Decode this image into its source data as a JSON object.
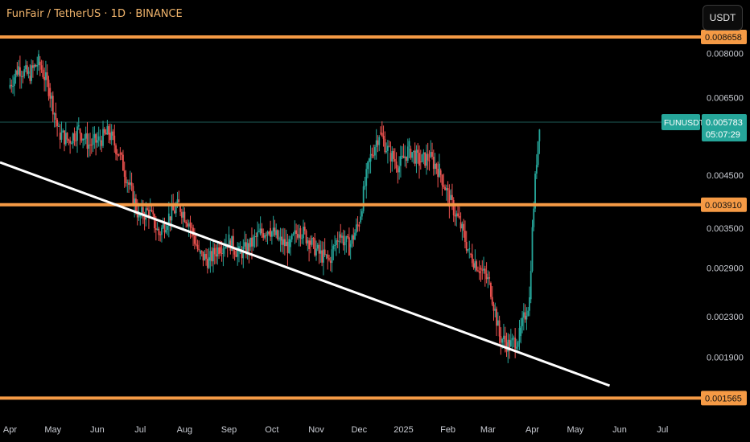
{
  "header": {
    "title": "FunFair / TetherUS · 1D · BINANCE",
    "unit_label": "USDT"
  },
  "colors": {
    "background": "#000000",
    "up": "#26a69a",
    "down": "#ef5350",
    "level": "#f59a45",
    "trendline": "#ffffff",
    "price_tag": "#26a69a"
  },
  "price_tag": {
    "symbol": "FUNUSDT",
    "price": "0.005783",
    "countdown": "05:07:29"
  },
  "chart_data": {
    "type": "candlestick",
    "title": "FunFair / TetherUS · 1D · BINANCE",
    "y_scale": "log",
    "y_ticks": [
      "0.008000",
      "0.006500",
      "0.004500",
      "0.003500",
      "0.002900",
      "0.002300",
      "0.001900"
    ],
    "y_range": [
      0.00148,
      0.0092
    ],
    "x_ticks": [
      "Apr",
      "May",
      "Jun",
      "Jul",
      "Aug",
      "Sep",
      "Oct",
      "Nov",
      "Dec",
      "2025",
      "Feb",
      "Mar",
      "Apr",
      "May",
      "Jun",
      "Jul"
    ],
    "x_range": [
      "2024-03-25",
      "2025-07-25"
    ],
    "horizontal_levels": [
      {
        "price": 0.008658,
        "label": "0.008658"
      },
      {
        "price": 0.00391,
        "label": "0.003910"
      },
      {
        "price": 0.001565,
        "label": "0.001565"
      }
    ],
    "trendline": {
      "start": [
        "2024-03-25",
        0.00478
      ],
      "end": [
        "2025-05-25",
        0.00166
      ]
    },
    "last_price": 0.005783,
    "candles": [
      [
        "2024-04-01",
        0.0068,
        0.0075
      ],
      [
        "2024-04-08",
        0.0075,
        0.0072
      ],
      [
        "2024-04-15",
        0.0072,
        0.0077
      ],
      [
        "2024-04-22",
        0.0077,
        0.0068
      ],
      [
        "2024-04-29",
        0.0068,
        0.0055
      ],
      [
        "2024-05-06",
        0.0055,
        0.0053
      ],
      [
        "2024-05-13",
        0.0053,
        0.0056
      ],
      [
        "2024-05-20",
        0.0056,
        0.0052
      ],
      [
        "2024-05-27",
        0.0052,
        0.0053
      ],
      [
        "2024-06-03",
        0.0053,
        0.0055
      ],
      [
        "2024-06-10",
        0.0055,
        0.005
      ],
      [
        "2024-06-17",
        0.005,
        0.0043
      ],
      [
        "2024-06-24",
        0.0043,
        0.0037
      ],
      [
        "2024-07-01",
        0.0037,
        0.0038
      ],
      [
        "2024-07-08",
        0.0038,
        0.0034
      ],
      [
        "2024-07-15",
        0.0034,
        0.0037
      ],
      [
        "2024-07-22",
        0.0037,
        0.0039
      ],
      [
        "2024-07-29",
        0.0039,
        0.0036
      ],
      [
        "2024-08-05",
        0.0036,
        0.0031
      ],
      [
        "2024-08-12",
        0.0031,
        0.003
      ],
      [
        "2024-08-19",
        0.003,
        0.0032
      ],
      [
        "2024-08-26",
        0.0032,
        0.0033
      ],
      [
        "2024-09-02",
        0.0033,
        0.0031
      ],
      [
        "2024-09-09",
        0.0031,
        0.0032
      ],
      [
        "2024-09-16",
        0.0032,
        0.0034
      ],
      [
        "2024-09-23",
        0.0034,
        0.0035
      ],
      [
        "2024-09-30",
        0.0035,
        0.0033
      ],
      [
        "2024-10-07",
        0.0033,
        0.0032
      ],
      [
        "2024-10-14",
        0.0032,
        0.0035
      ],
      [
        "2024-10-21",
        0.0035,
        0.0033
      ],
      [
        "2024-10-28",
        0.0033,
        0.0031
      ],
      [
        "2024-11-04",
        0.0031,
        0.003
      ],
      [
        "2024-11-11",
        0.003,
        0.0034
      ],
      [
        "2024-11-18",
        0.0034,
        0.0032
      ],
      [
        "2024-11-25",
        0.0032,
        0.0036
      ],
      [
        "2024-12-02",
        0.0036,
        0.0048
      ],
      [
        "2024-12-09",
        0.0048,
        0.0055
      ],
      [
        "2024-12-16",
        0.0055,
        0.005
      ],
      [
        "2024-12-23",
        0.005,
        0.0047
      ],
      [
        "2024-12-30",
        0.0047,
        0.0051
      ],
      [
        "2025-01-06",
        0.0051,
        0.0048
      ],
      [
        "2025-01-13",
        0.0048,
        0.0049
      ],
      [
        "2025-01-20",
        0.0049,
        0.0046
      ],
      [
        "2025-01-27",
        0.0046,
        0.004
      ],
      [
        "2025-02-03",
        0.004,
        0.0036
      ],
      [
        "2025-02-10",
        0.0036,
        0.0031
      ],
      [
        "2025-02-17",
        0.0031,
        0.0029
      ],
      [
        "2025-02-24",
        0.0029,
        0.0027
      ],
      [
        "2025-03-03",
        0.0027,
        0.0021
      ],
      [
        "2025-03-10",
        0.0021,
        0.002
      ],
      [
        "2025-03-17",
        0.002,
        0.0021
      ],
      [
        "2025-03-24",
        0.0021,
        0.0025
      ],
      [
        "2025-03-31",
        0.0025,
        0.0058
      ]
    ]
  }
}
